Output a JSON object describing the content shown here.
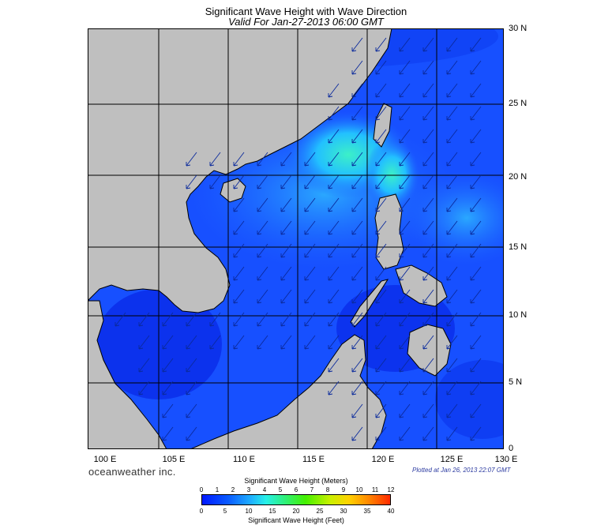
{
  "title": "Significant Wave Height with Wave Direction",
  "subtitle": "Valid For Jan-27-2013 06:00 GMT",
  "latitude_labels": [
    "30 N",
    "25 N",
    "20 N",
    "15 N",
    "10 N",
    "5 N",
    "0"
  ],
  "longitude_labels": [
    "100 E",
    "105 E",
    "110 E",
    "115 E",
    "120 E",
    "125 E",
    "130 E"
  ],
  "brand": "oceanweather inc.",
  "plotted": "Plotted at Jan 26, 2013 22:07 GMT",
  "colorbar": {
    "title_top": "Significant Wave Height (Meters)",
    "title_bottom": "Significant Wave Height (Feet)",
    "meters": [
      "0",
      "1",
      "2",
      "3",
      "4",
      "5",
      "6",
      "7",
      "8",
      "9",
      "10",
      "11",
      "12"
    ],
    "feet": [
      "0",
      "5",
      "10",
      "15",
      "20",
      "25",
      "30",
      "35",
      "40"
    ]
  },
  "map": {
    "extent": {
      "lon": [
        100,
        130
      ],
      "lat": [
        0,
        30
      ]
    },
    "grid_step_degrees": 5,
    "land_color": "#bfbfbf",
    "coast_color": "#000000",
    "arrow_color": "#0b2a9c",
    "wave_colors": {
      "low": "#0a32f0",
      "mid": "#1e64ff",
      "high": "#28b4ff",
      "peak": "#3cf0c8"
    }
  }
}
